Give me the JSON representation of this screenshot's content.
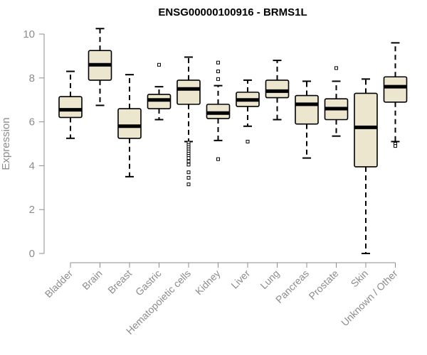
{
  "chart_data": {
    "type": "boxplot",
    "title": "ENSG00000100916 - BRMS1L",
    "ylabel": "Expression",
    "xlabel": "",
    "ylim": [
      0,
      10
    ],
    "yticks": [
      0,
      2,
      4,
      6,
      8,
      10
    ],
    "box_fill": "#ede6cf",
    "stroke": "#000000",
    "categories": [
      "Bladder",
      "Brain",
      "Breast",
      "Gastric",
      "Hematopoietic cells",
      "Kidney",
      "Liver",
      "Lung",
      "Pancreas",
      "Prostate",
      "Skin",
      "Unknown / Other"
    ],
    "boxes": [
      {
        "category": "Bladder",
        "whisker_low": 5.25,
        "q1": 6.2,
        "median": 6.55,
        "q3": 7.15,
        "whisker_high": 8.3,
        "outliers": []
      },
      {
        "category": "Brain",
        "whisker_low": 6.75,
        "q1": 7.9,
        "median": 8.6,
        "q3": 9.25,
        "whisker_high": 10.25,
        "outliers": []
      },
      {
        "category": "Breast",
        "whisker_low": 3.5,
        "q1": 5.25,
        "median": 5.8,
        "q3": 6.6,
        "whisker_high": 8.15,
        "outliers": []
      },
      {
        "category": "Gastric",
        "whisker_low": 6.1,
        "q1": 6.6,
        "median": 7.0,
        "q3": 7.25,
        "whisker_high": 7.6,
        "outliers": [
          8.6
        ]
      },
      {
        "category": "Hematopoietic cells",
        "whisker_low": 5.1,
        "q1": 6.8,
        "median": 7.5,
        "q3": 7.9,
        "whisker_high": 8.95,
        "outliers": [
          5.05,
          4.95,
          4.85,
          4.75,
          4.65,
          4.55,
          4.45,
          4.35,
          4.2,
          4.05,
          3.7,
          3.45,
          3.15
        ]
      },
      {
        "category": "Kidney",
        "whisker_low": 5.15,
        "q1": 6.15,
        "median": 6.4,
        "q3": 6.8,
        "whisker_high": 7.65,
        "outliers": [
          8.7,
          8.3,
          7.95,
          4.3
        ]
      },
      {
        "category": "Liver",
        "whisker_low": 5.8,
        "q1": 6.7,
        "median": 7.0,
        "q3": 7.35,
        "whisker_high": 7.9,
        "outliers": [
          5.1
        ]
      },
      {
        "category": "Lung",
        "whisker_low": 6.1,
        "q1": 7.1,
        "median": 7.4,
        "q3": 7.9,
        "whisker_high": 8.8,
        "outliers": []
      },
      {
        "category": "Pancreas",
        "whisker_low": 4.35,
        "q1": 5.9,
        "median": 6.8,
        "q3": 7.2,
        "whisker_high": 7.85,
        "outliers": []
      },
      {
        "category": "Prostate",
        "whisker_low": 5.35,
        "q1": 6.1,
        "median": 6.6,
        "q3": 7.05,
        "whisker_high": 7.85,
        "outliers": [
          8.45
        ]
      },
      {
        "category": "Skin",
        "whisker_low": 0.0,
        "q1": 3.95,
        "median": 5.75,
        "q3": 7.3,
        "whisker_high": 7.95,
        "outliers": []
      },
      {
        "category": "Unknown / Other",
        "whisker_low": 5.1,
        "q1": 6.9,
        "median": 7.6,
        "q3": 8.05,
        "whisker_high": 9.6,
        "outliers": [
          5.0,
          4.9
        ]
      }
    ]
  }
}
